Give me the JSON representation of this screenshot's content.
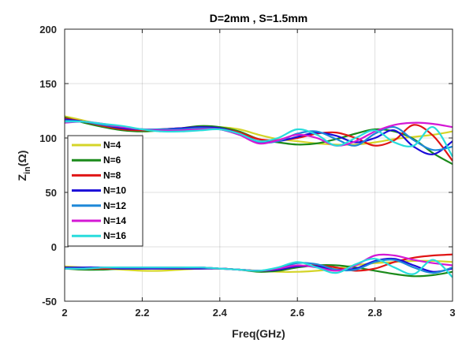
{
  "chart_data": {
    "type": "line",
    "title": "D=2mm , S=1.5mm",
    "xlabel": "Freq(GHz)",
    "ylabel_main": "Z",
    "ylabel_sub": "in",
    "ylabel_tail": "(Ω)",
    "xlim": [
      2,
      3
    ],
    "ylim": [
      -50,
      200
    ],
    "xticks": [
      2,
      2.2,
      2.4,
      2.6,
      2.8,
      3
    ],
    "xtick_labels": [
      "2",
      "2.2",
      "2.4",
      "2.6",
      "2.8",
      "3"
    ],
    "yticks": [
      -50,
      0,
      50,
      100,
      150,
      200
    ],
    "ytick_labels": [
      "-50",
      "0",
      "50",
      "100",
      "150",
      "200"
    ],
    "grid": true,
    "legend_position": "left",
    "x": [
      2.0,
      2.05,
      2.1,
      2.15,
      2.2,
      2.25,
      2.3,
      2.35,
      2.4,
      2.45,
      2.5,
      2.55,
      2.6,
      2.65,
      2.7,
      2.75,
      2.8,
      2.85,
      2.9,
      2.95,
      3.0
    ],
    "series": [
      {
        "name": "N=4",
        "color": "#d4d428",
        "real": [
          120,
          116,
          112,
          109,
          108,
          108,
          109,
          110,
          110,
          108,
          103,
          99,
          97,
          95,
          94,
          94,
          96,
          99,
          101,
          103,
          106
        ],
        "imag": [
          -18,
          -19,
          -20,
          -21,
          -22,
          -22,
          -21,
          -20,
          -20,
          -21,
          -22,
          -23,
          -23,
          -22,
          -20,
          -17,
          -15,
          -14,
          -13,
          -13,
          -14
        ]
      },
      {
        "name": "N=6",
        "color": "#1a8a1a",
        "real": [
          119,
          114,
          110,
          107,
          106,
          107,
          109,
          111,
          110,
          106,
          99,
          96,
          94,
          95,
          99,
          104,
          108,
          106,
          99,
          86,
          76
        ],
        "imag": [
          -20,
          -21,
          -21,
          -20,
          -20,
          -19,
          -19,
          -19,
          -20,
          -21,
          -23,
          -22,
          -19,
          -17,
          -17,
          -19,
          -22,
          -25,
          -27,
          -26,
          -23
        ]
      },
      {
        "name": "N=8",
        "color": "#e01515",
        "real": [
          118,
          115,
          111,
          108,
          107,
          108,
          109,
          110,
          109,
          105,
          99,
          98,
          100,
          104,
          105,
          100,
          93,
          98,
          112,
          102,
          79
        ],
        "imag": [
          -19,
          -20,
          -20,
          -20,
          -20,
          -20,
          -20,
          -20,
          -20,
          -21,
          -22,
          -21,
          -18,
          -17,
          -19,
          -22,
          -20,
          -14,
          -10,
          -8,
          -7
        ]
      },
      {
        "name": "N=10",
        "color": "#1a0ad8",
        "real": [
          117,
          115,
          112,
          109,
          108,
          108,
          109,
          110,
          109,
          104,
          97,
          97,
          101,
          105,
          102,
          96,
          100,
          107,
          92,
          85,
          97
        ],
        "imag": [
          -19,
          -19,
          -19,
          -20,
          -20,
          -20,
          -20,
          -20,
          -20,
          -21,
          -22,
          -21,
          -18,
          -18,
          -21,
          -20,
          -13,
          -11,
          -17,
          -23,
          -20
        ]
      },
      {
        "name": "N=12",
        "color": "#1e88d8",
        "real": [
          116,
          115,
          112,
          110,
          108,
          108,
          108,
          109,
          108,
          103,
          96,
          97,
          104,
          106,
          99,
          93,
          104,
          110,
          98,
          89,
          92
        ],
        "imag": [
          -20,
          -20,
          -19,
          -19,
          -19,
          -19,
          -19,
          -19,
          -20,
          -21,
          -22,
          -20,
          -15,
          -16,
          -21,
          -21,
          -14,
          -12,
          -19,
          -24,
          -19
        ]
      },
      {
        "name": "N=14",
        "color": "#d418d4",
        "real": [
          114,
          115,
          113,
          110,
          108,
          107,
          107,
          108,
          108,
          103,
          95,
          98,
          103,
          100,
          93,
          97,
          106,
          112,
          114,
          113,
          110
        ],
        "imag": [
          -20,
          -20,
          -19,
          -19,
          -19,
          -19,
          -19,
          -19,
          -20,
          -21,
          -22,
          -20,
          -17,
          -19,
          -22,
          -17,
          -8,
          -8,
          -12,
          -15,
          -17
        ]
      },
      {
        "name": "N=16",
        "color": "#28dcdc",
        "real": [
          115,
          115,
          113,
          111,
          108,
          106,
          106,
          107,
          108,
          104,
          97,
          100,
          108,
          103,
          93,
          100,
          107,
          96,
          93,
          110,
          83
        ],
        "imag": [
          -20,
          -20,
          -19,
          -19,
          -19,
          -19,
          -19,
          -19,
          -20,
          -21,
          -22,
          -19,
          -14,
          -19,
          -24,
          -16,
          -11,
          -19,
          -25,
          -12,
          -28
        ]
      }
    ]
  }
}
